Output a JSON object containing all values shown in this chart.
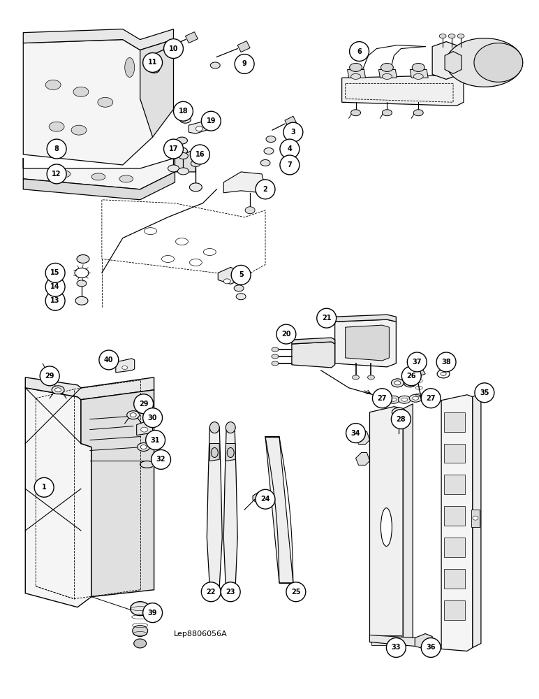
{
  "title": "Lep8806056A",
  "bg_color": "#ffffff",
  "figsize": [
    7.72,
    10.0
  ],
  "dpi": 100,
  "bubble_r": 0.018,
  "bubble_font": 7.0
}
